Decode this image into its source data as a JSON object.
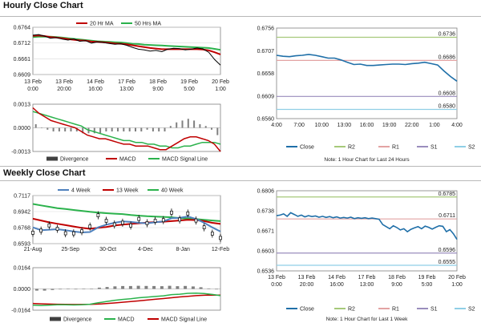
{
  "sections": {
    "hourly_title": "Hourly Close Chart",
    "weekly_title": "Weekly Close Chart"
  },
  "colors": {
    "ma_short": "#c00000",
    "ma_long": "#2bb24c",
    "close": "#1f6fa8",
    "r2": "#a6c97a",
    "r1": "#e3a3a3",
    "s1": "#9a8dbd",
    "s2": "#8fcfe6",
    "histogram": "#808080",
    "week4": "#4f81bd",
    "candle": "#000000"
  },
  "chart_data": [
    {
      "id": "hourly_price",
      "type": "line",
      "title": "",
      "legend": [
        "20 Hr MA",
        "50 Hrs MA"
      ],
      "yticks": [
        "0.6764",
        "0.6712",
        "0.6661",
        "0.6609"
      ],
      "xticks": [
        [
          "13 Feb",
          "0:00"
        ],
        [
          "13 Feb",
          "20:00"
        ],
        [
          "14 Feb",
          "16:00"
        ],
        [
          "17 Feb",
          "13:00"
        ],
        [
          "18 Feb",
          "9:00"
        ],
        [
          "19 Feb",
          "5:00"
        ],
        [
          "20 Feb",
          "1:00"
        ]
      ],
      "ylim": [
        0.6609,
        0.6764
      ],
      "series": [
        {
          "name": "Close",
          "values": [
            0.6738,
            0.674,
            0.6735,
            0.6728,
            0.673,
            0.6725,
            0.6722,
            0.6726,
            0.6718,
            0.672,
            0.6712,
            0.6716,
            0.6714,
            0.6711,
            0.6708,
            0.671,
            0.6705,
            0.6698,
            0.6692,
            0.669,
            0.6686,
            0.6688,
            0.6684,
            0.6692,
            0.6695,
            0.6694,
            0.669,
            0.6692,
            0.6696,
            0.6693,
            0.6682,
            0.6658,
            0.664
          ]
        },
        {
          "name": "20 Hr MA",
          "values": [
            0.6736,
            0.6737,
            0.6735,
            0.6732,
            0.673,
            0.6728,
            0.6725,
            0.6723,
            0.6721,
            0.672,
            0.6717,
            0.6716,
            0.6715,
            0.6713,
            0.6711,
            0.671,
            0.6708,
            0.6705,
            0.6702,
            0.6699,
            0.6696,
            0.6694,
            0.6692,
            0.6692,
            0.6692,
            0.6692,
            0.6692,
            0.6692,
            0.6692,
            0.6691,
            0.6688,
            0.6682,
            0.6675
          ]
        },
        {
          "name": "50 Hrs MA",
          "values": [
            0.6732,
            0.6733,
            0.6733,
            0.6733,
            0.6732,
            0.673,
            0.6728,
            0.6726,
            0.6724,
            0.6722,
            0.672,
            0.6718,
            0.6717,
            0.6716,
            0.6715,
            0.6714,
            0.6712,
            0.671,
            0.6709,
            0.6707,
            0.6706,
            0.6705,
            0.6704,
            0.6703,
            0.6702,
            0.6701,
            0.67,
            0.6699,
            0.6698,
            0.6697,
            0.6696,
            0.6693,
            0.669
          ]
        }
      ]
    },
    {
      "id": "hourly_macd",
      "type": "bar",
      "title": "",
      "legend": [
        "Divergence",
        "MACD",
        "MACD Signal Line"
      ],
      "yticks": [
        "0.0013",
        "0.0000",
        "-0.0013"
      ],
      "ylim": [
        -0.0013,
        0.0013
      ],
      "series": [
        {
          "name": "MACD",
          "values": [
            0.0011,
            0.0008,
            0.0006,
            0.0004,
            0.0003,
            0.0002,
            0.0001,
            0.0,
            -0.0002,
            -0.0004,
            -0.0005,
            -0.0006,
            -0.0006,
            -0.0007,
            -0.0008,
            -0.0009,
            -0.0009,
            -0.001,
            -0.001,
            -0.001,
            -0.0011,
            -0.0012,
            -0.0012,
            -0.001,
            -0.0008,
            -0.0006,
            -0.0005,
            -0.0005,
            -0.0006,
            -0.0007,
            -0.0009,
            -0.0013
          ]
        },
        {
          "name": "MACD Signal Line",
          "values": [
            0.0009,
            0.0008,
            0.0007,
            0.0006,
            0.0005,
            0.0004,
            0.0003,
            0.0002,
            0.0001,
            -0.0001,
            -0.0002,
            -0.0003,
            -0.0004,
            -0.0005,
            -0.0006,
            -0.0007,
            -0.0007,
            -0.0008,
            -0.0008,
            -0.0009,
            -0.0009,
            -0.001,
            -0.001,
            -0.0011,
            -0.0011,
            -0.001,
            -0.001,
            -0.0009,
            -0.0008,
            -0.0008,
            -0.0008,
            -0.0009
          ]
        },
        {
          "name": "Divergence",
          "values": [
            0.0002,
            0.0,
            -0.0001,
            -0.0002,
            -0.0002,
            -0.0002,
            -0.0002,
            -0.0002,
            -0.0003,
            -0.0003,
            -0.0003,
            -0.0003,
            -0.0002,
            -0.0002,
            -0.0002,
            -0.0002,
            -0.0002,
            -0.0002,
            -0.0002,
            -0.0001,
            -0.0002,
            -0.0002,
            -0.0002,
            0.0001,
            0.0003,
            0.0004,
            0.0005,
            0.0004,
            0.0002,
            0.0001,
            -0.0001,
            -0.0004
          ]
        }
      ]
    },
    {
      "id": "hourly_pivot",
      "type": "line",
      "title": "",
      "yticks": [
        "0.6756",
        "0.6707",
        "0.6658",
        "0.6609",
        "0.6560"
      ],
      "xticks": [
        "4:00",
        "7:00",
        "10:00",
        "13:00",
        "16:00",
        "19:00",
        "22:00",
        "1:00",
        "4:00"
      ],
      "ylim": [
        0.656,
        0.6756
      ],
      "levels": [
        {
          "name": "R2",
          "value": 0.6736,
          "label": "0.6736"
        },
        {
          "name": "R1",
          "value": 0.6686,
          "label": "0.6686"
        },
        {
          "name": "S1",
          "value": 0.6608,
          "label": "0.6608"
        },
        {
          "name": "S2",
          "value": 0.658,
          "label": "0.6580"
        }
      ],
      "series": [
        {
          "name": "Close",
          "values": [
            0.6697,
            0.6695,
            0.6694,
            0.6696,
            0.6697,
            0.6699,
            0.6697,
            0.6694,
            0.6691,
            0.6691,
            0.6687,
            0.6682,
            0.6677,
            0.6678,
            0.6675,
            0.6675,
            0.6676,
            0.6677,
            0.6678,
            0.6678,
            0.6677,
            0.6679,
            0.668,
            0.6682,
            0.6679,
            0.6676,
            0.6663,
            0.6651,
            0.6641
          ]
        }
      ],
      "legend": [
        "Close",
        "R2",
        "R1",
        "S1",
        "S2"
      ],
      "note": "Note: 1 Hour Chart for Last 24 Hours"
    },
    {
      "id": "weekly_price",
      "type": "line",
      "title": "",
      "legend": [
        "4 Week",
        "13 Week",
        "40 Week"
      ],
      "yticks": [
        "0.7117",
        "0.6942",
        "0.6768",
        "0.6593"
      ],
      "xticks": [
        "21-Aug",
        "25-Sep",
        "30-Oct",
        "4-Dec",
        "8-Jan",
        "12-Feb"
      ],
      "ylim": [
        0.6593,
        0.7117
      ],
      "series": [
        {
          "name": "Close",
          "values": [
            0.6712,
            0.6735,
            0.6792,
            0.6755,
            0.6706,
            0.6705,
            0.6728,
            0.6779,
            0.6902,
            0.6842,
            0.6802,
            0.6821,
            0.6791,
            0.6862,
            0.6816,
            0.6842,
            0.6849,
            0.6931,
            0.6856,
            0.6921,
            0.6845,
            0.6771,
            0.6702,
            0.6655
          ]
        },
        {
          "name": "4 Week",
          "values": [
            0.677,
            0.674,
            0.6745,
            0.675,
            0.674,
            0.6725,
            0.6715,
            0.672,
            0.677,
            0.68,
            0.682,
            0.6835,
            0.683,
            0.682,
            0.6815,
            0.6825,
            0.6835,
            0.687,
            0.6875,
            0.6888,
            0.6862,
            0.682,
            0.677,
            0.6725
          ]
        },
        {
          "name": "13 Week",
          "values": [
            0.6865,
            0.6845,
            0.6825,
            0.681,
            0.6795,
            0.678,
            0.6765,
            0.6755,
            0.6765,
            0.6775,
            0.679,
            0.68,
            0.6808,
            0.6815,
            0.6822,
            0.6828,
            0.6832,
            0.6838,
            0.6845,
            0.6852,
            0.685,
            0.6838,
            0.682,
            0.6808
          ]
        },
        {
          "name": "40 Week",
          "values": [
            0.7025,
            0.701,
            0.6995,
            0.698,
            0.697,
            0.696,
            0.695,
            0.694,
            0.6932,
            0.6925,
            0.692,
            0.6915,
            0.6905,
            0.6898,
            0.6892,
            0.6888,
            0.6885,
            0.688,
            0.6872,
            0.6866,
            0.686,
            0.6852,
            0.6845,
            0.6838
          ]
        }
      ]
    },
    {
      "id": "weekly_macd",
      "type": "bar",
      "title": "",
      "legend": [
        "Divergence",
        "MACD",
        "MACD Signal Line"
      ],
      "yticks": [
        "0.0164",
        "0.0000",
        "-0.0164"
      ],
      "ylim": [
        -0.0164,
        0.0164
      ],
      "series": [
        {
          "name": "MACD",
          "values": [
            -0.0125,
            -0.0128,
            -0.0125,
            -0.0122,
            -0.0122,
            -0.0124,
            -0.0122,
            -0.0118,
            -0.0107,
            -0.0098,
            -0.0088,
            -0.0081,
            -0.0076,
            -0.0068,
            -0.0063,
            -0.0058,
            -0.0053,
            -0.0044,
            -0.0041,
            -0.0034,
            -0.0033,
            -0.0036,
            -0.0043,
            -0.0052
          ]
        },
        {
          "name": "MACD Signal Line",
          "values": [
            -0.0112,
            -0.0115,
            -0.0117,
            -0.0118,
            -0.0119,
            -0.012,
            -0.012,
            -0.0119,
            -0.0117,
            -0.0113,
            -0.0108,
            -0.0103,
            -0.0098,
            -0.0092,
            -0.0086,
            -0.008,
            -0.0074,
            -0.0068,
            -0.0062,
            -0.0057,
            -0.0052,
            -0.0049,
            -0.0047,
            -0.0048
          ]
        },
        {
          "name": "Divergence",
          "values": [
            -0.0013,
            -0.0013,
            -0.0008,
            -0.0004,
            -0.0003,
            -0.0004,
            -0.0002,
            0.0001,
            0.001,
            0.0015,
            0.002,
            0.0022,
            0.0022,
            0.0024,
            0.0023,
            0.0022,
            0.0021,
            0.0024,
            0.0021,
            0.0023,
            0.0019,
            0.0013,
            0.0004,
            -0.0004
          ]
        }
      ]
    },
    {
      "id": "weekly_pivot",
      "type": "line",
      "title": "",
      "yticks": [
        "0.6806",
        "0.6738",
        "0.6671",
        "0.6603",
        "0.6536"
      ],
      "xticks": [
        [
          "13 Feb",
          "0:00"
        ],
        [
          "13 Feb",
          "20:00"
        ],
        [
          "14 Feb",
          "16:00"
        ],
        [
          "17 Feb",
          "13:00"
        ],
        [
          "18 Feb",
          "9:00"
        ],
        [
          "19 Feb",
          "5:00"
        ],
        [
          "20 Feb",
          "1:00"
        ]
      ],
      "ylim": [
        0.6536,
        0.6806
      ],
      "levels": [
        {
          "name": "R2",
          "value": 0.6785,
          "label": "0.6785"
        },
        {
          "name": "R1",
          "value": 0.6711,
          "label": "0.6711"
        },
        {
          "name": "S1",
          "value": 0.6596,
          "label": "0.6596"
        },
        {
          "name": "S2",
          "value": 0.6555,
          "label": "0.6555"
        }
      ],
      "series": [
        {
          "name": "Close",
          "values": [
            0.6722,
            0.6724,
            0.6728,
            0.672,
            0.6732,
            0.6726,
            0.672,
            0.6724,
            0.6718,
            0.6722,
            0.6719,
            0.6721,
            0.6717,
            0.672,
            0.6716,
            0.6719,
            0.6715,
            0.6718,
            0.6714,
            0.6716,
            0.6714,
            0.6717,
            0.6712,
            0.6715,
            0.6713,
            0.6715,
            0.6712,
            0.6714,
            0.6712,
            0.671,
            0.6692,
            0.6685,
            0.6678,
            0.6688,
            0.6682,
            0.6674,
            0.6678,
            0.6668,
            0.6676,
            0.6681,
            0.6685,
            0.6678,
            0.6687,
            0.6683,
            0.6677,
            0.6683,
            0.6688,
            0.6686,
            0.6668,
            0.6675,
            0.6661,
            0.6642
          ]
        }
      ],
      "legend": [
        "Close",
        "R2",
        "R1",
        "S1",
        "S2"
      ],
      "note": "Note: 1 Hour Chart for Last 1 Week"
    }
  ]
}
